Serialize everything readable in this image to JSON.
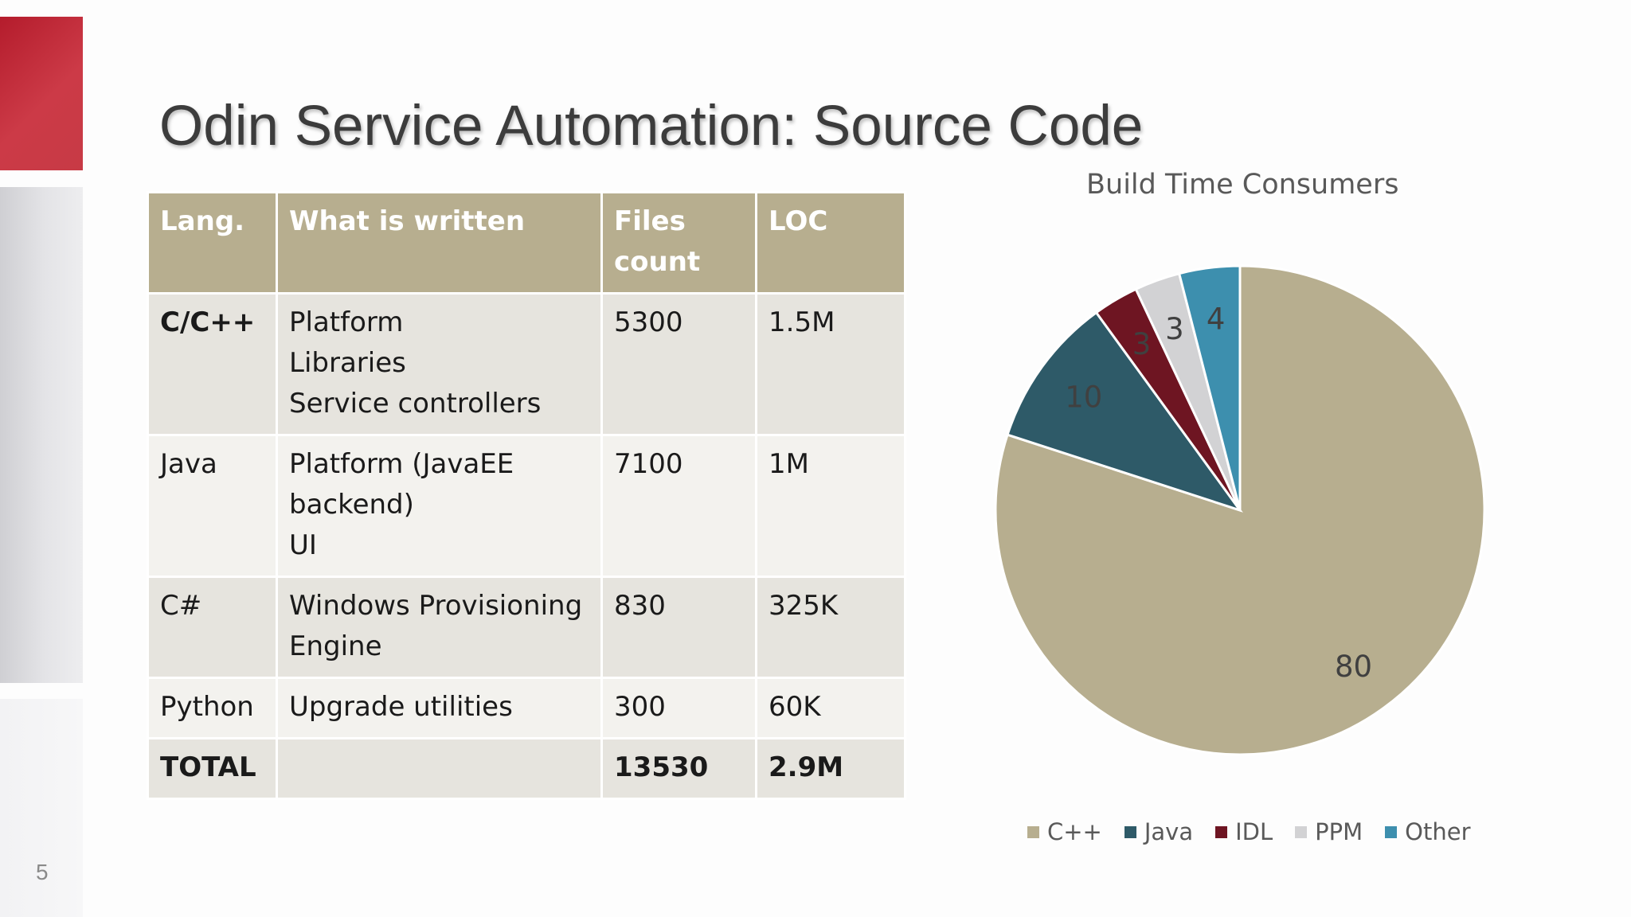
{
  "slide": {
    "number": "5",
    "title": "Odin Service Automation: Source Code"
  },
  "table": {
    "headers": [
      "Lang.",
      "What is written",
      "Files count",
      "LOC"
    ],
    "rows": [
      {
        "lang": "C/C++",
        "what": [
          "Platform",
          "Libraries",
          "Service controllers"
        ],
        "files": "5300",
        "loc": "1.5M"
      },
      {
        "lang": "Java",
        "what": [
          "Platform (JavaEE backend)",
          "UI"
        ],
        "files": "7100",
        "loc": "1M"
      },
      {
        "lang": "C#",
        "what": [
          "Windows Provisioning Engine"
        ],
        "files": "830",
        "loc": "325K"
      },
      {
        "lang": "Python",
        "what": [
          "Upgrade utilities"
        ],
        "files": "300",
        "loc": "60K"
      },
      {
        "lang": "TOTAL",
        "what": [],
        "files": "13530",
        "loc": "2.9M"
      }
    ]
  },
  "chart_data": {
    "type": "pie",
    "title": "Build Time Consumers",
    "categories": [
      "C++",
      "Java",
      "IDL",
      "PPM",
      "Other"
    ],
    "values": [
      80,
      10,
      3,
      3,
      4
    ],
    "colors": [
      "#b7ae8f",
      "#2e5a68",
      "#6e1522",
      "#d2d2d4",
      "#3d8fae"
    ],
    "legend_position": "bottom"
  }
}
